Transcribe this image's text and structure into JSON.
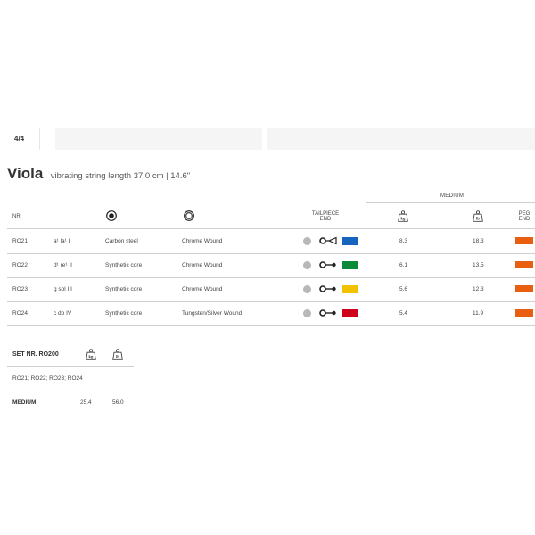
{
  "tabs": {
    "active": "4/4"
  },
  "title": {
    "main": "Viola",
    "sub": "vibrating string length 37.0 cm | 14.6\""
  },
  "columns": {
    "nr": "NR",
    "tailpiece_end_line1": "TAILPIECE",
    "tailpiece_end_line2": "END",
    "medium": "MEDIUM",
    "kg_unit": "kg",
    "lb_unit": "lb",
    "peg_end_line1": "PEG",
    "peg_end_line2": "END"
  },
  "rows": [
    {
      "nr": "RO21",
      "note": "a¹ la¹ I",
      "core": "Carbon steel",
      "winding": "Chrome Wound",
      "color": "#1565c0",
      "end_type": "loop",
      "kg": "8.3",
      "lb": "18.3",
      "peg_color": "#e8600f"
    },
    {
      "nr": "RO22",
      "note": "d¹ re¹ II",
      "core": "Synthetic core",
      "winding": "Chrome Wound",
      "color": "#0a8a3a",
      "end_type": "ball",
      "kg": "6.1",
      "lb": "13.5",
      "peg_color": "#e8600f"
    },
    {
      "nr": "RO23",
      "note": "g sol III",
      "core": "Synthetic core",
      "winding": "Chrome Wound",
      "color": "#f2c200",
      "end_type": "ball",
      "kg": "5.6",
      "lb": "12.3",
      "peg_color": "#e8600f"
    },
    {
      "nr": "RO24",
      "note": "c do IV",
      "core": "Synthetic core",
      "winding": "Tungsten/Silver Wound",
      "color": "#d0021b",
      "end_type": "ball",
      "kg": "5.4",
      "lb": "11.9",
      "peg_color": "#e8600f"
    }
  ],
  "set": {
    "title": "SET NR. RO200",
    "kg_unit": "kg",
    "lb_unit": "lb",
    "contents": "RO21; RO22; RO23; RO24",
    "medium_label": "MEDIUM",
    "kg": "25.4",
    "lb": "56.0"
  }
}
